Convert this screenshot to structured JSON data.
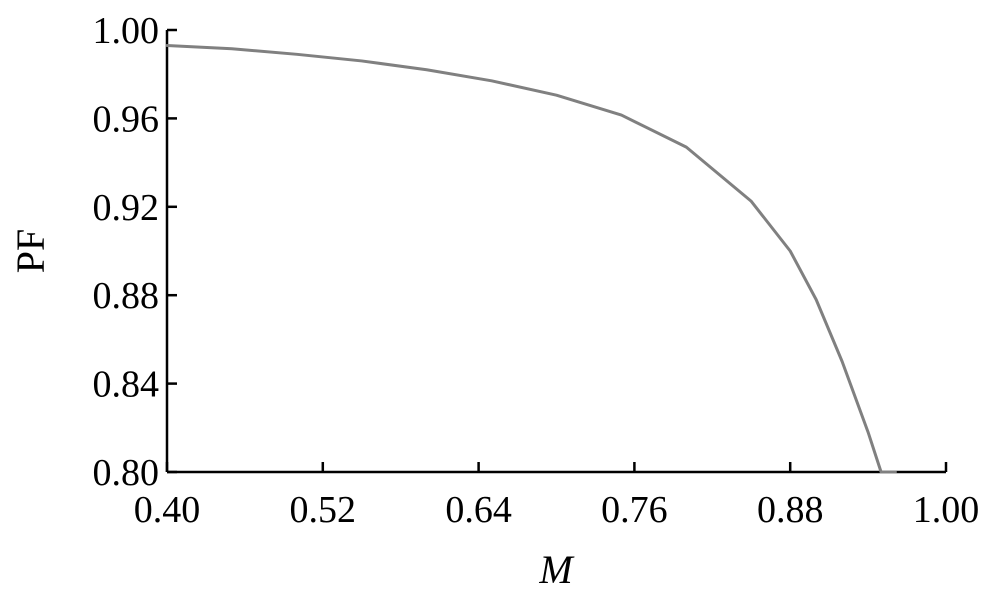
{
  "chart_data": {
    "type": "line",
    "xlabel": "M",
    "ylabel": "PF",
    "xlim": [
      0.4,
      1.0
    ],
    "ylim": [
      0.8,
      1.0
    ],
    "xticks": [
      "0.40",
      "0.52",
      "0.64",
      "0.76",
      "0.88",
      "1.00"
    ],
    "yticks": [
      "0.80",
      "0.84",
      "0.88",
      "0.92",
      "0.96",
      "1.00"
    ],
    "grid": false,
    "series_color": "#808080",
    "series": [
      {
        "x": [
          0.4,
          0.45,
          0.5,
          0.55,
          0.6,
          0.65,
          0.7,
          0.75,
          0.8,
          0.85,
          0.88,
          0.9,
          0.92,
          0.94,
          0.95,
          0.961
        ],
        "y": [
          0.993,
          0.9915,
          0.989,
          0.986,
          0.982,
          0.977,
          0.9705,
          0.9615,
          0.947,
          0.9225,
          0.9,
          0.878,
          0.85,
          0.818,
          0.8,
          0.8
        ]
      }
    ]
  }
}
